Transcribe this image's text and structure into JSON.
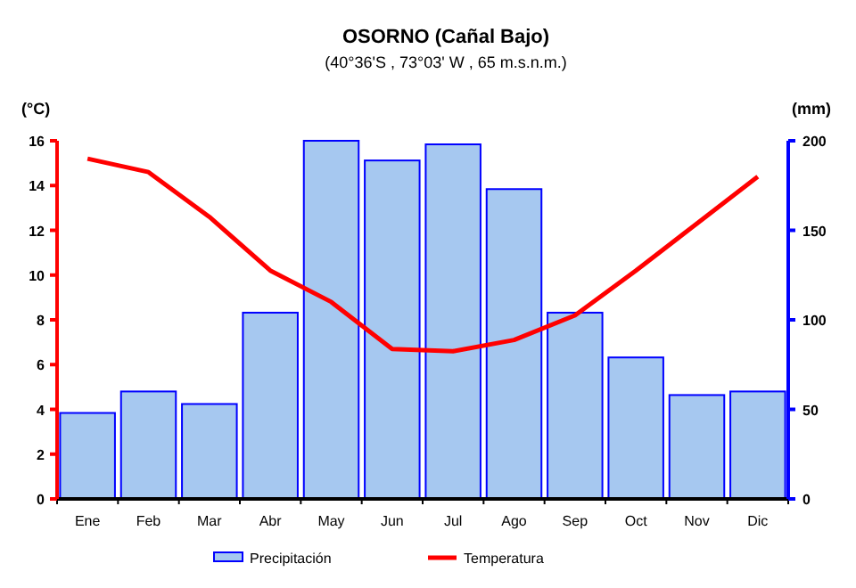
{
  "chart_data": {
    "type": "bar",
    "title": "OSORNO   (Cañal Bajo)",
    "subtitle": "(40°36'S , 73°03' W , 65 m.s.n.m.)",
    "ylabel": "(°C)",
    "y2label": "(mm)",
    "categories": [
      "Ene",
      "Feb",
      "Mar",
      "Abr",
      "May",
      "Jun",
      "Jul",
      "Ago",
      "Sep",
      "Oct",
      "Nov",
      "Dic"
    ],
    "series": [
      {
        "name": "Precipitación",
        "axis": "y2",
        "color": "#a6c8f0",
        "values": [
          48,
          60,
          53,
          104,
          200,
          189,
          198,
          173,
          104,
          79,
          58,
          60
        ]
      },
      {
        "name": "Temperatura",
        "type": "line",
        "color": "#ff0000",
        "values": [
          15.2,
          14.6,
          12.6,
          10.2,
          8.8,
          6.7,
          6.6,
          7.1,
          8.2,
          10.2,
          12.3,
          14.4
        ]
      }
    ],
    "ylim": [
      0,
      16
    ],
    "yticks": [
      0,
      2,
      4,
      6,
      8,
      10,
      12,
      14,
      16
    ],
    "y2lim": [
      0,
      200
    ],
    "y2ticks": [
      0,
      50,
      100,
      150,
      200
    ],
    "legend": "bottom"
  }
}
